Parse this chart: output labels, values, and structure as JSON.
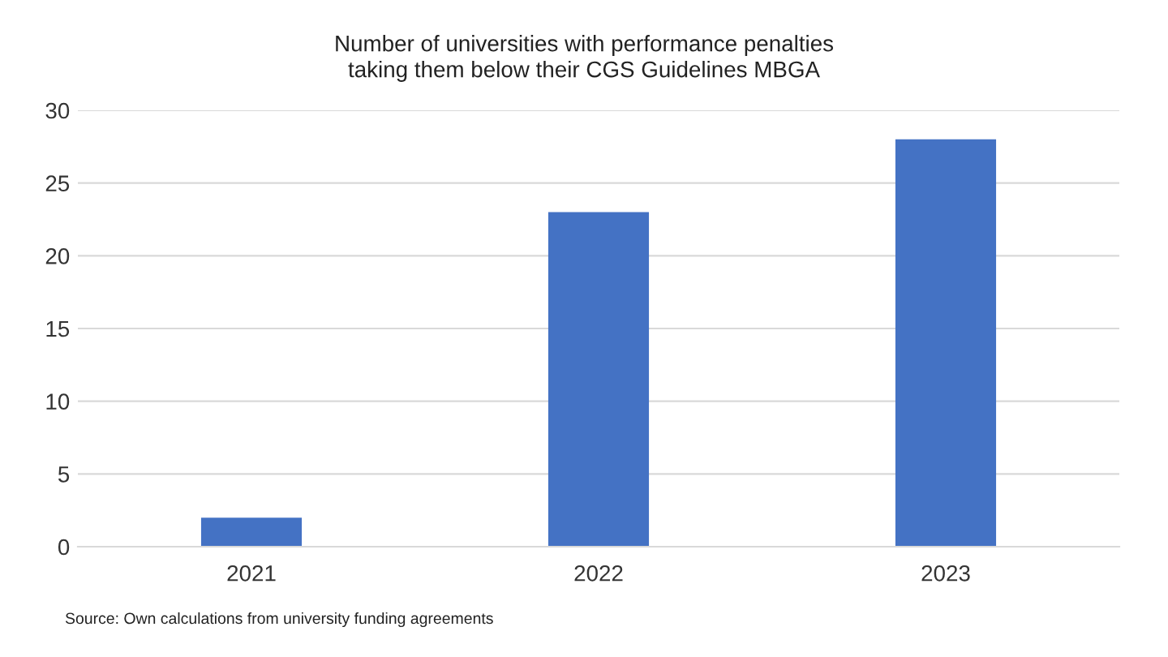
{
  "chart_data": {
    "type": "bar",
    "title": "Number of universities with performance penalties\ntaking them below their CGS Guidelines MBGA",
    "categories": [
      "2021",
      "2022",
      "2023"
    ],
    "values": [
      2,
      23,
      28
    ],
    "color": "#4472c4",
    "ylim": [
      0,
      30
    ],
    "yticks": [
      0,
      5,
      10,
      15,
      20,
      25,
      30
    ],
    "grid": "y",
    "annotations": [
      "Source: Own calculations from university funding agreements"
    ]
  }
}
